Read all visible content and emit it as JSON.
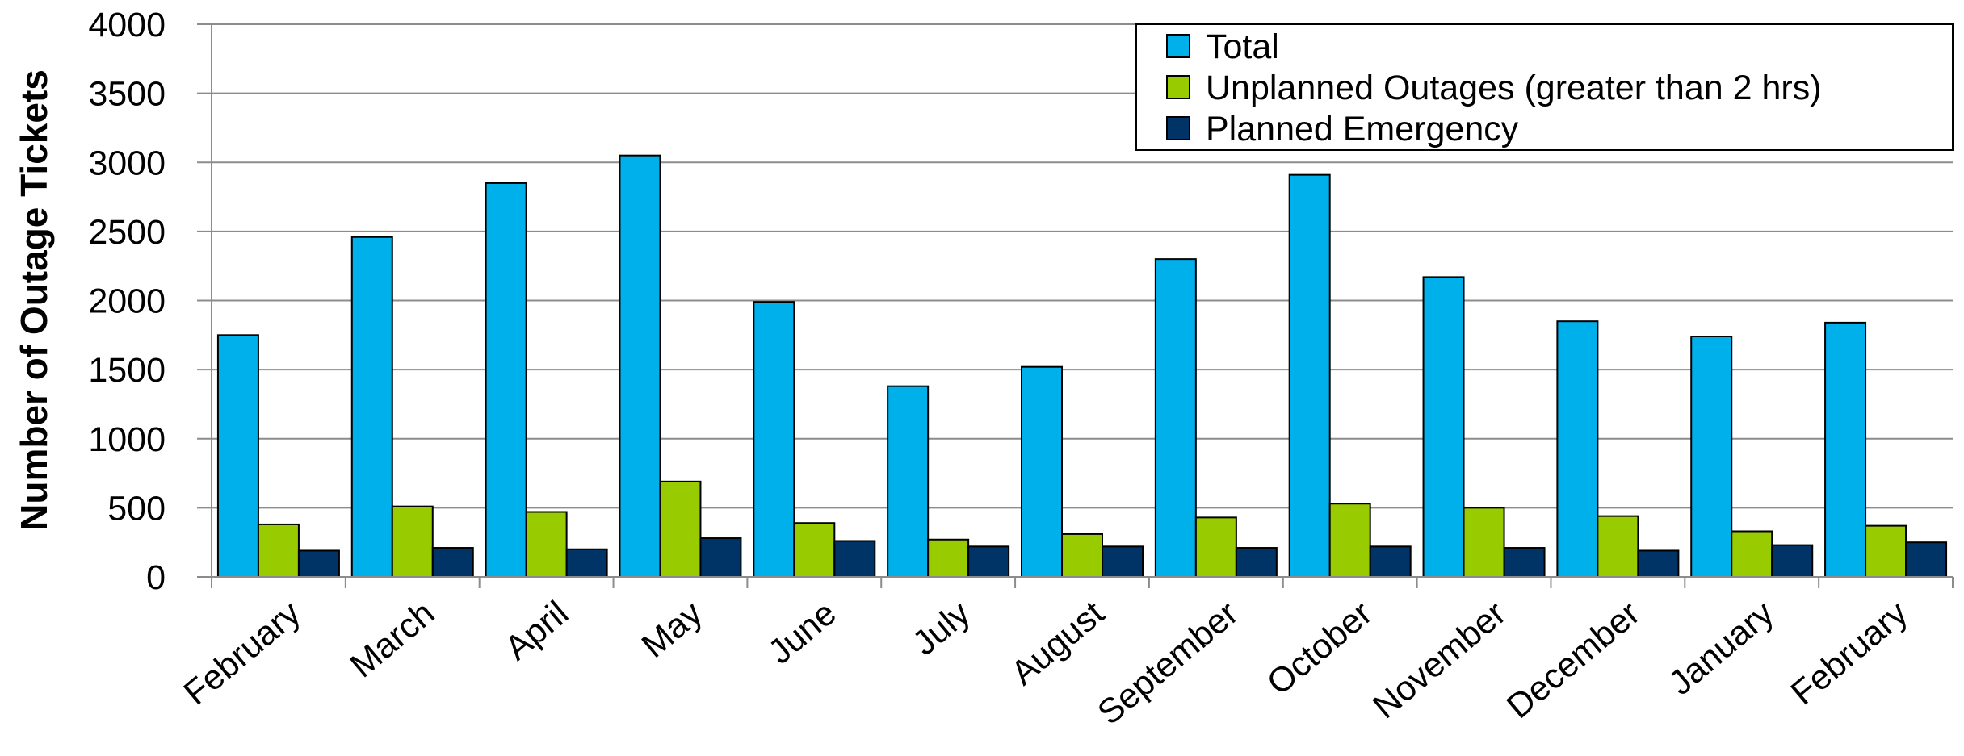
{
  "chart_data": {
    "type": "bar",
    "title": "",
    "xlabel": "",
    "ylabel": "Number of Outage Tickets",
    "ylim": [
      0,
      4000
    ],
    "yticks": [
      0,
      500,
      1000,
      1500,
      2000,
      2500,
      3000,
      3500,
      4000
    ],
    "grid": true,
    "legend_position": "top-right",
    "categories": [
      "February",
      "March",
      "April",
      "May",
      "June",
      "July",
      "August",
      "September",
      "October",
      "November",
      "December",
      "January",
      "February"
    ],
    "series": [
      {
        "name": "Total",
        "color": "#00B0EB",
        "values": [
          1750,
          2460,
          2850,
          3050,
          1990,
          1380,
          1520,
          2300,
          2910,
          2170,
          1850,
          1740,
          1840
        ]
      },
      {
        "name": "Unplanned Outages (greater than 2 hrs)",
        "color": "#99CC00",
        "values": [
          380,
          510,
          470,
          690,
          390,
          270,
          310,
          430,
          530,
          500,
          440,
          330,
          370
        ]
      },
      {
        "name": "Planned Emergency",
        "color": "#003366",
        "values": [
          190,
          210,
          200,
          280,
          260,
          220,
          220,
          210,
          220,
          210,
          190,
          230,
          250
        ]
      }
    ]
  }
}
